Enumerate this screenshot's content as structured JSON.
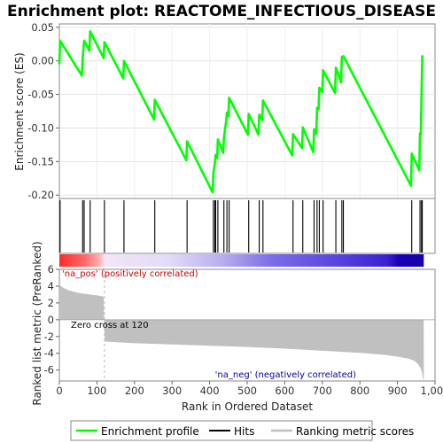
{
  "chart_data": {
    "type": "line",
    "title": "Enrichment plot: REACTOME_INFECTIOUS_DISEASE",
    "es_panel": {
      "ylabel": "Enrichment score (ES)",
      "ylim": [
        -0.205,
        0.055
      ],
      "yticks": [
        0.05,
        0.0,
        -0.05,
        -0.1,
        -0.15,
        -0.2
      ],
      "ytick_labels": [
        "0.05",
        "0.00",
        "-0.05",
        "-0.10",
        "-0.15",
        "-0.20"
      ],
      "series": [
        {
          "name": "Enrichment profile",
          "color": "#00ff00",
          "x": [
            0,
            2,
            60,
            62,
            66,
            80,
            82,
            118,
            120,
            170,
            172,
            252,
            254,
            338,
            340,
            408,
            410,
            414,
            416,
            420,
            422,
            436,
            438,
            444,
            446,
            450,
            452,
            502,
            504,
            530,
            532,
            540,
            542,
            620,
            622,
            646,
            648,
            676,
            678,
            684,
            686,
            690,
            692,
            700,
            702,
            734,
            736,
            750,
            752,
            756,
            758,
            936,
            938,
            958,
            960,
            962,
            964,
            966,
            968
          ],
          "y": [
            -0.005,
            0.03,
            -0.022,
            0.005,
            0.03,
            0.015,
            0.044,
            0.004,
            0.028,
            -0.026,
            0.0,
            -0.087,
            -0.058,
            -0.148,
            -0.12,
            -0.196,
            -0.168,
            -0.153,
            -0.14,
            -0.145,
            -0.117,
            -0.137,
            -0.115,
            -0.089,
            -0.077,
            -0.082,
            -0.055,
            -0.11,
            -0.079,
            -0.11,
            -0.08,
            -0.088,
            -0.059,
            -0.141,
            -0.109,
            -0.13,
            -0.099,
            -0.136,
            -0.102,
            -0.108,
            -0.07,
            -0.072,
            -0.04,
            -0.046,
            -0.014,
            -0.048,
            -0.01,
            -0.032,
            0.006,
            0.007,
            0.005,
            -0.186,
            -0.138,
            -0.163,
            -0.108,
            -0.109,
            -0.052,
            0.007,
            0.005
          ]
        }
      ]
    },
    "hits": {
      "name": "Hits",
      "color": "#000000",
      "positions": [
        2,
        62,
        66,
        82,
        120,
        172,
        254,
        340,
        410,
        414,
        416,
        422,
        438,
        446,
        452,
        504,
        532,
        542,
        622,
        648,
        678,
        686,
        692,
        702,
        736,
        752,
        756,
        938,
        960,
        964,
        966
      ]
    },
    "ranking_panel": {
      "ylabel": "Ranked list metric (PreRanked)",
      "ylim": [
        -7.3,
        6.0
      ],
      "yticks": [
        6,
        4,
        2,
        0,
        -2,
        -4,
        -6
      ],
      "ytick_labels": [
        "6",
        "4",
        "2",
        "0",
        "-2",
        "-4",
        "-6"
      ],
      "xlabel": "Rank in Ordered Dataset",
      "xlim": [
        0,
        1000
      ],
      "xticks": [
        0,
        100,
        200,
        300,
        400,
        500,
        600,
        700,
        800,
        900,
        1000
      ],
      "xtick_labels": [
        "0",
        "100",
        "200",
        "300",
        "400",
        "500",
        "600",
        "700",
        "800",
        "900",
        "1,000"
      ],
      "fill_color": "#c0c0c0",
      "profile_x": [
        0,
        2,
        10,
        25,
        50,
        80,
        100,
        118,
        119,
        121,
        200,
        300,
        400,
        500,
        600,
        700,
        800,
        860,
        900,
        930,
        945,
        955,
        962,
        966,
        968,
        970
      ],
      "profile_y": [
        4.4,
        4.1,
        3.8,
        3.5,
        3.2,
        3.0,
        2.9,
        2.75,
        0,
        -2.6,
        -2.8,
        -2.95,
        -3.1,
        -3.25,
        -3.45,
        -3.7,
        -3.95,
        -4.15,
        -4.4,
        -4.65,
        -4.9,
        -5.3,
        -5.8,
        -6.4,
        -7.0,
        -7.2
      ],
      "zero_cross_label": "Zero cross at 120",
      "zero_cross_x": 120,
      "pos_label": "'na_pos' (positively correlated)",
      "pos_color": "#cc0000",
      "neg_label": "'na_neg' (negatively correlated)",
      "neg_color": "#0000aa"
    },
    "legend": {
      "placement": "bottom",
      "items": [
        {
          "label": "Enrichment profile",
          "color": "#00ff00",
          "kind": "line"
        },
        {
          "label": "Hits",
          "color": "#000000",
          "kind": "tick"
        },
        {
          "label": "Ranking metric scores",
          "color": "#c0c0c0",
          "kind": "line"
        }
      ]
    }
  }
}
